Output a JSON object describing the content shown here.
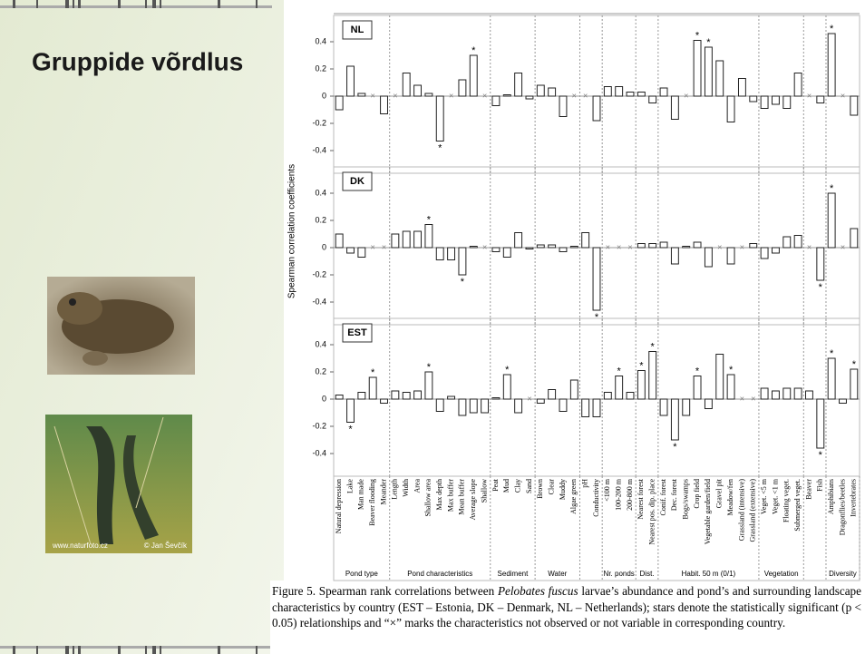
{
  "slide": {
    "title": "Gruppide võrdlus",
    "photo_credits": [
      "www.naturfoto.cz",
      "© Jan Ševčík"
    ]
  },
  "chart_data": {
    "type": "bar",
    "y_label": "Spearman correlation coefficients",
    "categories": [
      "Natural depression",
      "Lake",
      "Man made",
      "Beaver flooding",
      "Meander",
      "Length",
      "Width",
      "Area",
      "Shallow area",
      "Max depth",
      "Max buffer",
      "Mean buffer",
      "Average slope",
      "Shallow",
      "Peat",
      "Mud",
      "Clay",
      "Sand",
      "Brown",
      "Clear",
      "Muddy",
      "Algae green",
      "pH",
      "Conductivity",
      "<100 m",
      "100-200 m",
      "200-800 m",
      "Nearest forest",
      "Nearest pos. dip. place",
      "Conif. forest",
      "Dec. forest",
      "Bogs/swamps",
      "Crop field",
      "Vegetable garden/field",
      "Gravel pit",
      "Meadow/fen",
      "Grassland (intensive)",
      "Grassland (extensive)",
      "Veget. <5 m",
      "Veget. <1 m",
      "Floating veget.",
      "Submerged veget.",
      "Beaver",
      "Fish",
      "Amphibians",
      "Dragonflies/beetles",
      "Invertebrates"
    ],
    "groups": [
      {
        "label": "Pond type",
        "count": 5
      },
      {
        "label": "Pond characteristics",
        "count": 9
      },
      {
        "label": "Sediment",
        "count": 4
      },
      {
        "label": "Water",
        "count": 4
      },
      {
        "label": null,
        "count": 2
      },
      {
        "label": "Nr. ponds",
        "count": 3
      },
      {
        "label": "Dist.",
        "count": 2
      },
      {
        "label": "Habit. 50 m (0/1)",
        "count": 9
      },
      {
        "label": "Vegetation",
        "count": 4
      },
      {
        "label": null,
        "count": 2
      },
      {
        "label": "Diversity",
        "count": 3
      }
    ],
    "series": [
      {
        "name": "NL",
        "color": "#ffffff",
        "values": [
          -0.1,
          0.22,
          0.02,
          null,
          -0.13,
          null,
          0.17,
          0.08,
          0.02,
          -0.33,
          null,
          0.12,
          0.3,
          null,
          -0.07,
          0.01,
          0.17,
          -0.02,
          0.08,
          0.06,
          -0.15,
          null,
          null,
          -0.18,
          0.07,
          0.07,
          0.03,
          0.03,
          -0.05,
          0.06,
          -0.17,
          null,
          0.41,
          0.36,
          0.26,
          -0.19,
          0.13,
          -0.04,
          -0.09,
          -0.06,
          -0.09,
          0.17,
          null,
          -0.05,
          0.46,
          null,
          -0.14
        ],
        "significant": [
          9,
          12,
          32,
          33,
          44
        ]
      },
      {
        "name": "DK",
        "color": "#ffffff",
        "values": [
          0.1,
          -0.04,
          -0.07,
          null,
          null,
          0.1,
          0.12,
          0.12,
          0.17,
          -0.09,
          -0.09,
          -0.2,
          0.01,
          null,
          -0.03,
          -0.07,
          0.11,
          -0.01,
          0.02,
          0.02,
          -0.03,
          0.01,
          0.11,
          -0.46,
          null,
          null,
          null,
          0.03,
          0.03,
          0.04,
          -0.12,
          0.01,
          0.04,
          -0.14,
          null,
          -0.12,
          null,
          0.03,
          -0.08,
          -0.04,
          0.08,
          0.09,
          null,
          -0.24,
          0.4,
          null,
          0.14
        ],
        "significant": [
          8,
          11,
          23,
          43,
          44
        ]
      },
      {
        "name": "EST",
        "color": "#ffffff",
        "values": [
          0.03,
          -0.17,
          0.05,
          0.16,
          -0.03,
          0.06,
          0.05,
          0.06,
          0.2,
          -0.09,
          0.02,
          -0.12,
          -0.1,
          -0.1,
          0.01,
          0.18,
          -0.1,
          null,
          -0.03,
          0.07,
          -0.09,
          0.14,
          -0.13,
          -0.13,
          0.05,
          0.17,
          0.05,
          0.21,
          0.35,
          -0.12,
          -0.3,
          -0.12,
          0.17,
          -0.07,
          0.33,
          0.18,
          null,
          null,
          0.08,
          0.06,
          0.08,
          0.08,
          0.06,
          -0.36,
          0.3,
          -0.03,
          0.22
        ],
        "significant": [
          1,
          3,
          8,
          15,
          25,
          27,
          28,
          30,
          32,
          35,
          43,
          44,
          46
        ]
      }
    ],
    "star": "*",
    "null_marker": "×",
    "ylim": [
      -0.5,
      0.5
    ],
    "yticks": [
      0.4,
      0.2,
      0,
      -0.2,
      -0.4
    ],
    "caption": [
      "Figure 5. Spearman rank correlations between ",
      "Pelobates fuscus",
      " larvae’s abundance and pond’s and surrounding landscape characteristics by country (EST – Estonia, DK – Denmark, NL – Netherlands); stars denote the statistically significant (p < 0.05) relationships and “×” marks the characteristics not observed or not variable in corresponding country."
    ]
  }
}
